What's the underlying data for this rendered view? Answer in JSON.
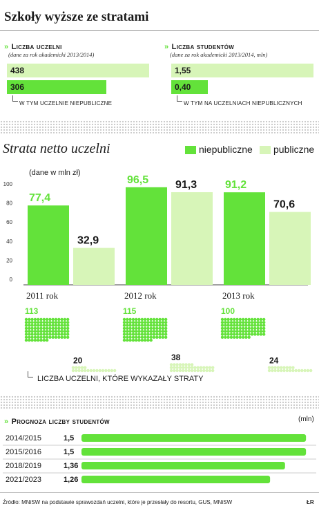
{
  "title": "Szkoły wyższe ze stratami",
  "colors": {
    "accent": "#63e23a",
    "light": "#d7f5b8",
    "dark": "#1a1a1a"
  },
  "uczelnie": {
    "heading": "Liczba uczelni",
    "sub": "(dane za rok akademicki 2013/2014)",
    "total": 438,
    "private": 306,
    "note": "W TYM UCZELNIE NIEPUBLICZNE"
  },
  "studenci": {
    "heading": "Liczba studentów",
    "sub": "(dane za rok akademicki 2013/2014, mln)",
    "total": "1,55",
    "private": "0,40",
    "note": "W TYM NA UCZELNIACH NIEPUBLICZNYCH"
  },
  "strata": {
    "title": "Strata netto uczelni",
    "unit": "(dane w mln zł)",
    "legend": [
      "niepubliczne",
      "publiczne"
    ]
  },
  "chart_data": [
    {
      "type": "bar",
      "title": "Strata netto uczelni",
      "ylabel": "(dane w mln zł)",
      "ylim": [
        0,
        100
      ],
      "yticks": [
        0,
        20,
        40,
        60,
        80,
        100
      ],
      "categories": [
        "2011 rok",
        "2012 rok",
        "2013 rok"
      ],
      "series": [
        {
          "name": "niepubliczne",
          "values": [
            77.4,
            96.5,
            91.2
          ],
          "labels": [
            "77,4",
            "96,5",
            "91,2"
          ]
        },
        {
          "name": "publiczne",
          "values": [
            32.9,
            91.3,
            70.6
          ],
          "labels": [
            "32,9",
            "91,3",
            "70,6"
          ]
        }
      ]
    },
    {
      "type": "bar",
      "title": "Liczba uczelni, które wykazały straty",
      "categories": [
        "2011 rok",
        "2012 rok",
        "2013 rok"
      ],
      "series": [
        {
          "name": "niepubliczne",
          "values": [
            113,
            115,
            100
          ]
        },
        {
          "name": "publiczne",
          "values": [
            20,
            38,
            24
          ]
        }
      ]
    },
    {
      "type": "bar",
      "title": "Prognoza liczby studentów",
      "unit": "(mln)",
      "categories": [
        "2014/2015",
        "2015/2016",
        "2018/2019",
        "2021/2023"
      ],
      "values": [
        1.5,
        1.5,
        1.36,
        1.26
      ],
      "labels": [
        "1,5",
        "1,5",
        "1,36",
        "1,26"
      ]
    }
  ],
  "loss_counts_caption": "LICZBA UCZELNI, KTÓRE WYKAZAŁY STRATY",
  "prognoza": {
    "heading": "Prognoza liczby studentów",
    "unit": "(mln)"
  },
  "footer": {
    "source": "Źródło: MNiSW na podstawie sprawozdań uczelni, które je przesłały do resortu, GUS, MNiSW",
    "initials": "ŁR"
  }
}
